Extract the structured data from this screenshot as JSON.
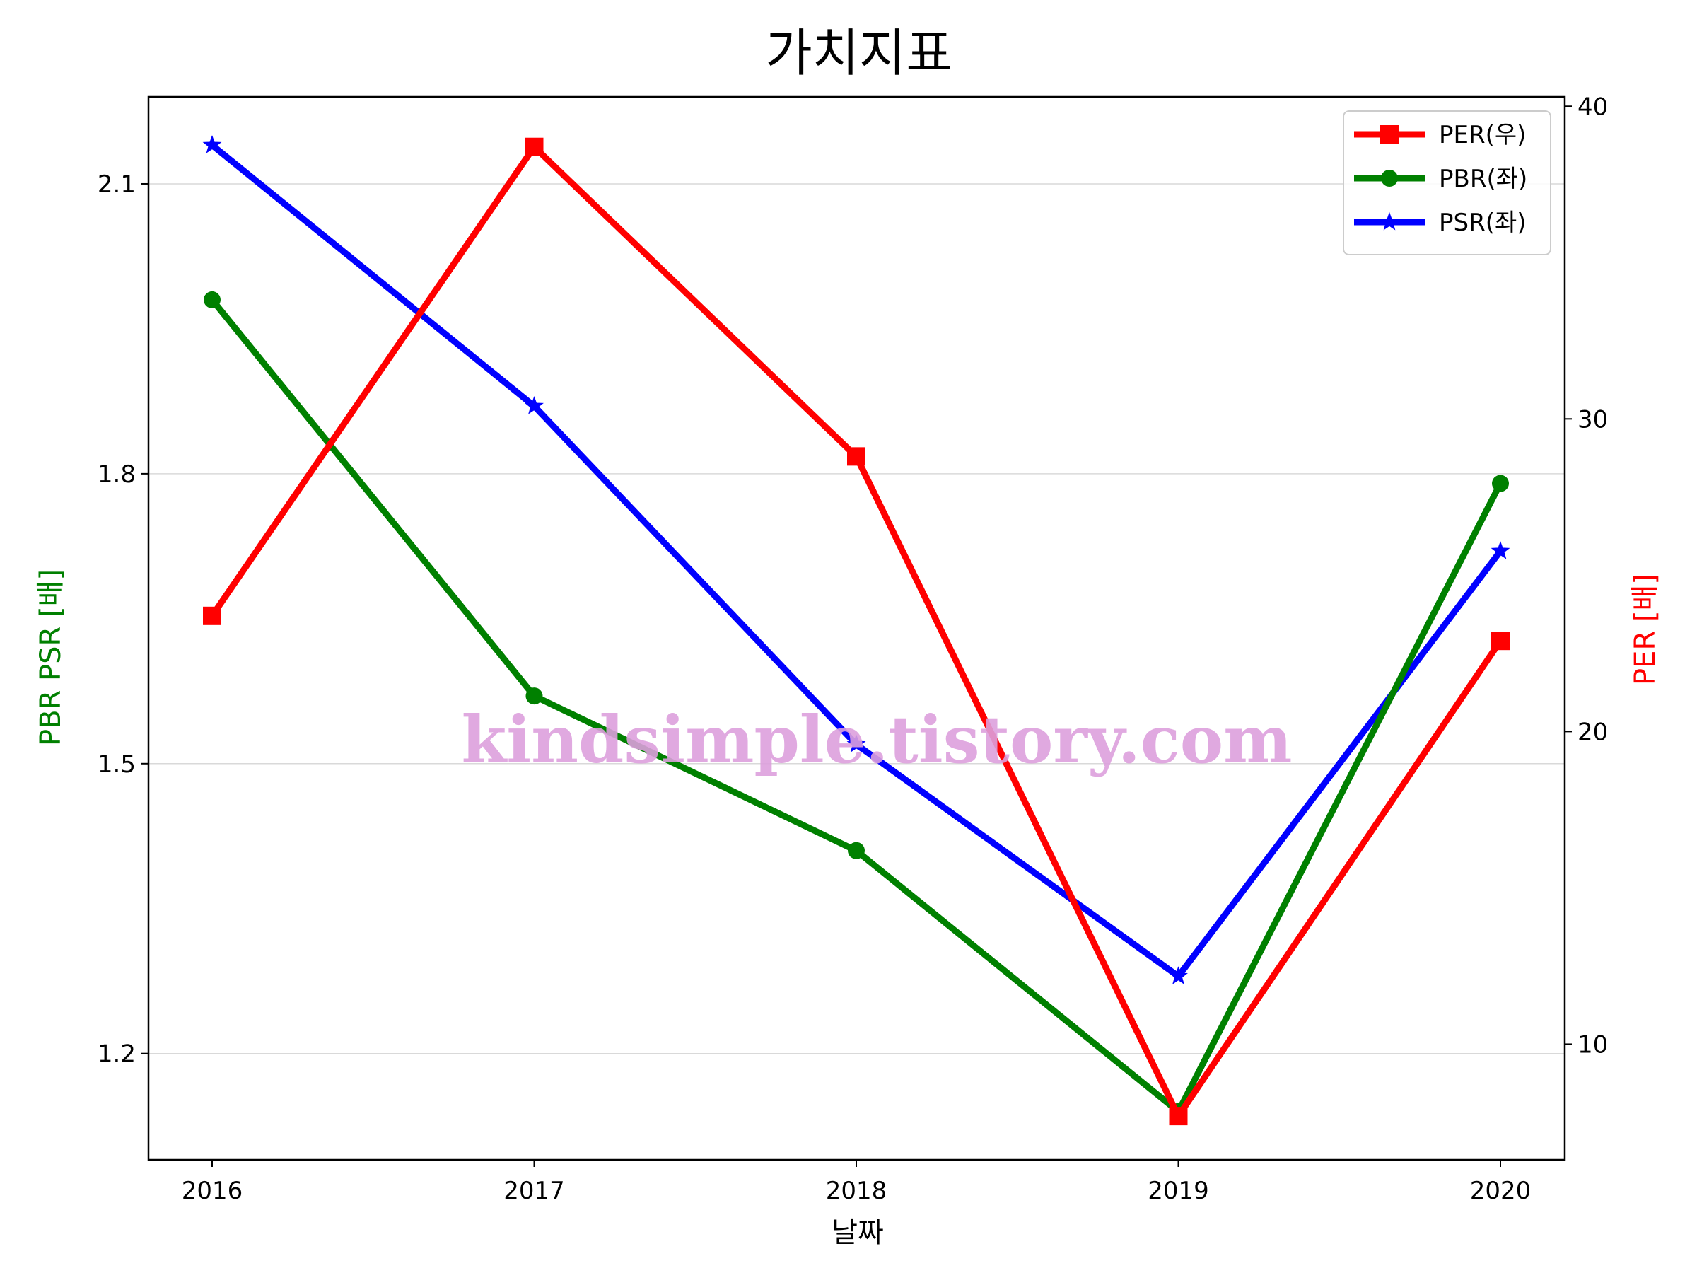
{
  "chart_data": {
    "type": "line",
    "title": "가치지표",
    "xlabel": "날짜",
    "ylabel_left": "PBR PSR [배]",
    "ylabel_right": "PER [배]",
    "categories": [
      "2016",
      "2017",
      "2018",
      "2019",
      "2020"
    ],
    "left_axis": {
      "ylim": [
        1.09,
        2.19
      ],
      "ticks": [
        1.2,
        1.5,
        1.8,
        2.1
      ],
      "tick_labels": [
        "1.2",
        "1.5",
        "1.8",
        "2.1"
      ]
    },
    "right_axis": {
      "ylim": [
        6.3,
        40.3
      ],
      "ticks": [
        10,
        20,
        30,
        40
      ],
      "tick_labels": [
        "10",
        "20",
        "30",
        "40"
      ]
    },
    "grid": "horizontal, left axis",
    "legend_position": "top-right",
    "series": [
      {
        "name": "PER(우)",
        "axis": "right",
        "color": "#ff0000",
        "marker": "square",
        "values": [
          23.7,
          38.7,
          28.8,
          7.7,
          22.9
        ]
      },
      {
        "name": "PBR(좌)",
        "axis": "left",
        "color": "#008000",
        "marker": "circle",
        "values": [
          1.98,
          1.57,
          1.41,
          1.14,
          1.79
        ]
      },
      {
        "name": "PSR(좌)",
        "axis": "left",
        "color": "#0000ff",
        "marker": "star",
        "values": [
          2.14,
          1.87,
          1.52,
          1.28,
          1.72
        ]
      }
    ],
    "left_label_color": "#008000",
    "right_label_color": "#ff0000",
    "watermark": "kindsimple.tistory.com",
    "watermark_color": "#dda0dd"
  }
}
